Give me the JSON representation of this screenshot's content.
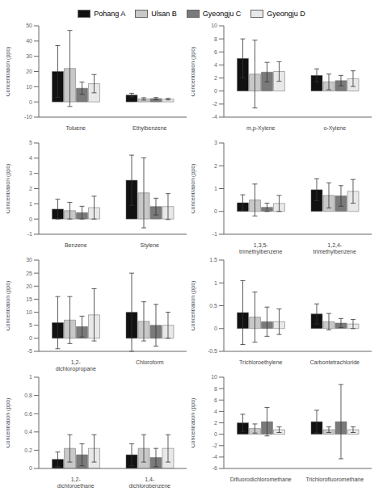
{
  "chart_data": [
    {
      "type": "bar",
      "ylabel": "Concentration (ppb)",
      "legend": "top",
      "grid": false,
      "ylim": [
        -10,
        50
      ],
      "yticks": [
        -10,
        0,
        10,
        20,
        30,
        40,
        50
      ],
      "categories": [
        "Toluene",
        "Ethylbenzene"
      ],
      "series": [
        {
          "name": "Pohang A",
          "color": "#111111",
          "values": [
            20,
            4.5
          ],
          "errors": [
            17,
            1.2
          ]
        },
        {
          "name": "Ulsan B",
          "color": "#c8c8c8",
          "values": [
            22,
            2.0
          ],
          "errors": [
            25,
            0.8
          ]
        },
        {
          "name": "Gyeongju C",
          "color": "#7a7a7a",
          "values": [
            9,
            2.2
          ],
          "errors": [
            4,
            0.7
          ]
        },
        {
          "name": "Gyeongju D",
          "color": "#e8e8e8",
          "values": [
            12,
            1.8
          ],
          "errors": [
            6,
            0.5
          ]
        }
      ]
    },
    {
      "type": "bar",
      "ylabel": "Concentration (ppb)",
      "grid": false,
      "ylim": [
        -4,
        10
      ],
      "yticks": [
        -4,
        -2,
        0,
        2,
        4,
        6,
        8,
        10
      ],
      "categories": [
        "m,p-Xylene",
        "o-Xylene"
      ],
      "series": [
        {
          "name": "Pohang A",
          "color": "#111111",
          "values": [
            5.0,
            2.4
          ],
          "errors": [
            3.0,
            1.0
          ]
        },
        {
          "name": "Ulsan B",
          "color": "#c8c8c8",
          "values": [
            2.6,
            1.4
          ],
          "errors": [
            5.2,
            1.2
          ]
        },
        {
          "name": "Gyeongju C",
          "color": "#7a7a7a",
          "values": [
            2.9,
            1.6
          ],
          "errors": [
            1.5,
            0.8
          ]
        },
        {
          "name": "Gyeongju D",
          "color": "#e8e8e8",
          "values": [
            3.0,
            1.9
          ],
          "errors": [
            1.5,
            1.2
          ]
        }
      ]
    },
    {
      "type": "bar",
      "ylabel": "Concentration (ppb)",
      "grid": false,
      "ylim": [
        -1,
        5
      ],
      "yticks": [
        -1,
        0,
        1,
        2,
        3,
        4,
        5
      ],
      "categories": [
        "Benzene",
        "Stylene"
      ],
      "series": [
        {
          "name": "Pohang A",
          "color": "#111111",
          "values": [
            0.65,
            2.55
          ],
          "errors": [
            0.65,
            1.65
          ]
        },
        {
          "name": "Ulsan B",
          "color": "#c8c8c8",
          "values": [
            0.55,
            1.72
          ],
          "errors": [
            0.55,
            2.3
          ]
        },
        {
          "name": "Gyeongju C",
          "color": "#7a7a7a",
          "values": [
            0.42,
            0.82
          ],
          "errors": [
            0.42,
            0.55
          ]
        },
        {
          "name": "Gyeongju D",
          "color": "#e8e8e8",
          "values": [
            0.75,
            0.82
          ],
          "errors": [
            0.75,
            0.85
          ]
        }
      ]
    },
    {
      "type": "bar",
      "ylabel": "Concentration (ppb)",
      "grid": false,
      "ylim": [
        -1,
        3
      ],
      "yticks": [
        -1,
        0,
        1,
        2,
        3
      ],
      "categories": [
        "1,3,5- trimethylbenzene",
        "1,2,4- trimethylbenzene"
      ],
      "series": [
        {
          "name": "Pohang A",
          "color": "#111111",
          "values": [
            0.38,
            0.95
          ],
          "errors": [
            0.35,
            0.48
          ]
        },
        {
          "name": "Ulsan B",
          "color": "#c8c8c8",
          "values": [
            0.5,
            0.7
          ],
          "errors": [
            0.7,
            0.55
          ]
        },
        {
          "name": "Gyeongju C",
          "color": "#7a7a7a",
          "values": [
            0.18,
            0.68
          ],
          "errors": [
            0.18,
            0.45
          ]
        },
        {
          "name": "Gyeongju D",
          "color": "#e8e8e8",
          "values": [
            0.35,
            0.88
          ],
          "errors": [
            0.35,
            0.52
          ]
        }
      ]
    },
    {
      "type": "bar",
      "ylabel": "Concentration (ppb)",
      "grid": false,
      "ylim": [
        -5,
        30
      ],
      "yticks": [
        -5,
        0,
        5,
        10,
        15,
        20,
        25,
        30
      ],
      "categories": [
        "1,2- dichloropropane",
        "Chloroform"
      ],
      "series": [
        {
          "name": "Pohang A",
          "color": "#111111",
          "values": [
            6.0,
            10.0
          ],
          "errors": [
            10.0,
            15.0
          ]
        },
        {
          "name": "Ulsan B",
          "color": "#c8c8c8",
          "values": [
            7.0,
            6.5
          ],
          "errors": [
            9.0,
            7.5
          ]
        },
        {
          "name": "Gyeongju C",
          "color": "#7a7a7a",
          "values": [
            4.5,
            5.0
          ],
          "errors": [
            4.0,
            8.0
          ]
        },
        {
          "name": "Gyeongju D",
          "color": "#e8e8e8",
          "values": [
            9.0,
            5.0
          ],
          "errors": [
            10.0,
            5.0
          ]
        }
      ]
    },
    {
      "type": "bar",
      "ylabel": "Concentration (ppb)",
      "grid": false,
      "ylim": [
        -0.5,
        1.5
      ],
      "yticks": [
        -0.5,
        0,
        0.5,
        1,
        1.5
      ],
      "categories": [
        "Trichloroethylene",
        "Carbontetrachloride"
      ],
      "series": [
        {
          "name": "Pohang A",
          "color": "#111111",
          "values": [
            0.35,
            0.32
          ],
          "errors": [
            0.7,
            0.22
          ]
        },
        {
          "name": "Ulsan B",
          "color": "#c8c8c8",
          "values": [
            0.25,
            0.15
          ],
          "errors": [
            0.55,
            0.18
          ]
        },
        {
          "name": "Gyeongju C",
          "color": "#7a7a7a",
          "values": [
            0.15,
            0.12
          ],
          "errors": [
            0.32,
            0.1
          ]
        },
        {
          "name": "Gyeongju D",
          "color": "#e8e8e8",
          "values": [
            0.15,
            0.1
          ],
          "errors": [
            0.28,
            0.1
          ]
        }
      ]
    },
    {
      "type": "bar",
      "ylabel": "Concentration (ppb)",
      "grid": false,
      "ylim": [
        0,
        1
      ],
      "yticks": [
        0,
        0.2,
        0.4,
        0.6,
        0.8,
        1
      ],
      "categories": [
        "1,2- dichloroethane",
        "1,4- dichlorobenzene"
      ],
      "series": [
        {
          "name": "Pohang A",
          "color": "#111111",
          "values": [
            0.1,
            0.15
          ],
          "errors": [
            0.08,
            0.12
          ]
        },
        {
          "name": "Ulsan B",
          "color": "#c8c8c8",
          "values": [
            0.22,
            0.22
          ],
          "errors": [
            0.15,
            0.15
          ]
        },
        {
          "name": "Gyeongju C",
          "color": "#7a7a7a",
          "values": [
            0.15,
            0.12
          ],
          "errors": [
            0.12,
            0.1
          ]
        },
        {
          "name": "Gyeongju D",
          "color": "#e8e8e8",
          "values": [
            0.22,
            0.22
          ],
          "errors": [
            0.15,
            0.15
          ]
        }
      ]
    },
    {
      "type": "bar",
      "ylabel": "Concentration (ppb)",
      "grid": false,
      "ylim": [
        -6,
        10
      ],
      "yticks": [
        -6,
        -4,
        -2,
        0,
        2,
        4,
        6,
        8,
        10
      ],
      "categories": [
        "Difluorodichloromethane",
        "Trichlorofluoromethane"
      ],
      "series": [
        {
          "name": "Pohang A",
          "color": "#111111",
          "values": [
            2.0,
            2.2
          ],
          "errors": [
            1.5,
            2.0
          ]
        },
        {
          "name": "Ulsan B",
          "color": "#c8c8c8",
          "values": [
            1.0,
            0.8
          ],
          "errors": [
            0.8,
            0.5
          ]
        },
        {
          "name": "Gyeongju C",
          "color": "#7a7a7a",
          "values": [
            2.2,
            2.2
          ],
          "errors": [
            2.5,
            6.5
          ]
        },
        {
          "name": "Gyeongju D",
          "color": "#e8e8e8",
          "values": [
            0.8,
            0.8
          ],
          "errors": [
            0.5,
            0.5
          ]
        }
      ]
    }
  ]
}
